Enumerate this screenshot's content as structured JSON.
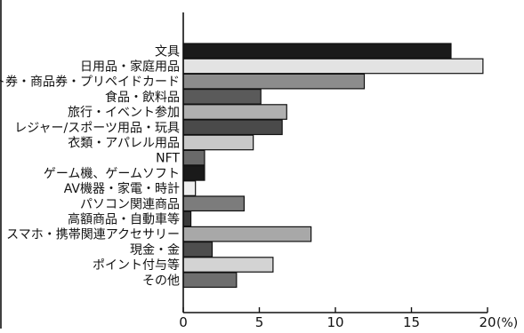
{
  "chart_data": {
    "type": "bar",
    "orientation": "horizontal",
    "categories": [
      "文具",
      "日用品・家庭用品",
      "ギフト券・商品券・プリペイドカード",
      "食品・飲料品",
      "旅行・イベント参加",
      "レジャー/スポーツ用品・玩具",
      "衣類・アパレル用品",
      "NFT",
      "ゲーム機、ゲームソフト",
      "AV機器・家電・時計",
      "パソコン関連商品",
      "高額商品・自動車等",
      "スマホ・携帯関連アクセサリー",
      "現金・金",
      "ポイント付与等",
      "その他"
    ],
    "values": [
      17.6,
      19.7,
      11.9,
      5.1,
      6.8,
      6.5,
      4.6,
      1.4,
      1.4,
      0.8,
      4.0,
      0.5,
      8.4,
      1.9,
      5.9,
      3.5
    ],
    "bar_colors": [
      "#1a1a1a",
      "#e3e3e3",
      "#8c8c8c",
      "#5a5a5a",
      "#b0b0b0",
      "#4a4a4a",
      "#c8c8c8",
      "#6a6a6a",
      "#1a1a1a",
      "#efefef",
      "#7c7c7c",
      "#3a3a3a",
      "#a8a8a8",
      "#4e4e4e",
      "#d3d3d3",
      "#6e6e6e"
    ],
    "xlim": [
      0,
      20
    ],
    "xticks": [
      "0",
      "5",
      "10",
      "15",
      "20"
    ],
    "x_unit": "(%)",
    "title": "",
    "xlabel": "",
    "ylabel": "",
    "grid": false,
    "legend": "none"
  }
}
